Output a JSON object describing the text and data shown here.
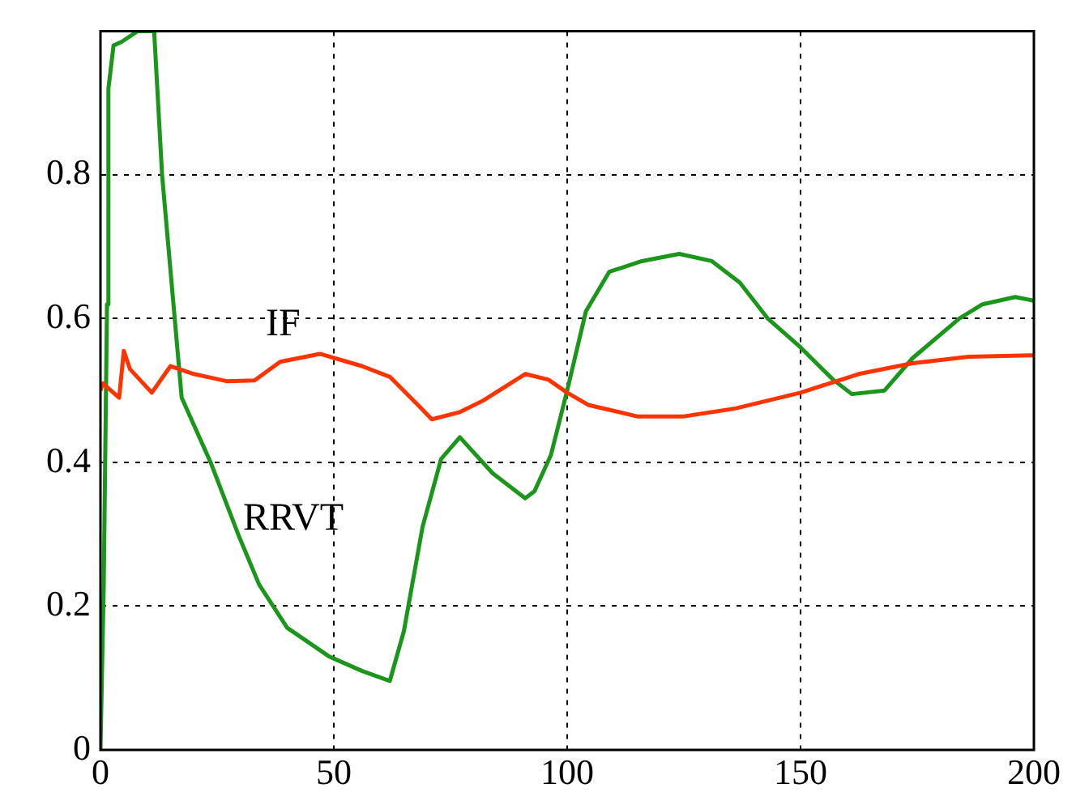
{
  "chart_data": {
    "type": "line",
    "xlim": [
      0,
      200
    ],
    "ylim": [
      0,
      1
    ],
    "xticks": [
      0,
      50,
      100,
      150,
      200
    ],
    "yticks": [
      0,
      0.2,
      0.4,
      0.6,
      0.8
    ],
    "grid": true,
    "legend": false,
    "marker": "none",
    "line_style": "solid",
    "series": [
      {
        "name": "IF",
        "color": "#ff3300",
        "x": [
          0,
          0.5,
          4,
          5,
          6.3,
          11,
          15,
          20,
          27,
          33,
          38.5,
          47,
          56,
          62,
          68,
          71,
          77,
          82,
          91,
          96,
          100,
          104.5,
          115,
          125,
          136,
          150,
          162.5,
          174,
          186,
          200
        ],
        "values": [
          0.5,
          0.51,
          0.49,
          0.555,
          0.53,
          0.497,
          0.534,
          0.523,
          0.513,
          0.514,
          0.54,
          0.551,
          0.534,
          0.519,
          0.48,
          0.46,
          0.47,
          0.486,
          0.523,
          0.515,
          0.497,
          0.48,
          0.464,
          0.464,
          0.475,
          0.497,
          0.523,
          0.538,
          0.547,
          0.549
        ]
      },
      {
        "name": "RRVT",
        "color": "#1a961a",
        "x": [
          0,
          0.7,
          1.4,
          1.7,
          2.8,
          4.5,
          8,
          11.5,
          13.2,
          17.4,
          23.6,
          29.5,
          34,
          40,
          49,
          56,
          62,
          65,
          69,
          73,
          77,
          84,
          91,
          93,
          96.5,
          100,
          104,
          109,
          116,
          124,
          131,
          137,
          143,
          150,
          157,
          161,
          168,
          174,
          184,
          189,
          196,
          200
        ],
        "values": [
          0,
          0.23,
          0.62,
          0.92,
          0.98,
          0.985,
          1,
          1,
          0.8,
          0.49,
          0.4,
          0.3,
          0.23,
          0.17,
          0.13,
          0.11,
          0.096,
          0.165,
          0.31,
          0.405,
          0.435,
          0.385,
          0.35,
          0.36,
          0.41,
          0.5,
          0.61,
          0.665,
          0.68,
          0.69,
          0.68,
          0.65,
          0.6,
          0.56,
          0.515,
          0.495,
          0.5,
          0.545,
          0.6,
          0.62,
          0.63,
          0.625
        ]
      }
    ]
  }
}
